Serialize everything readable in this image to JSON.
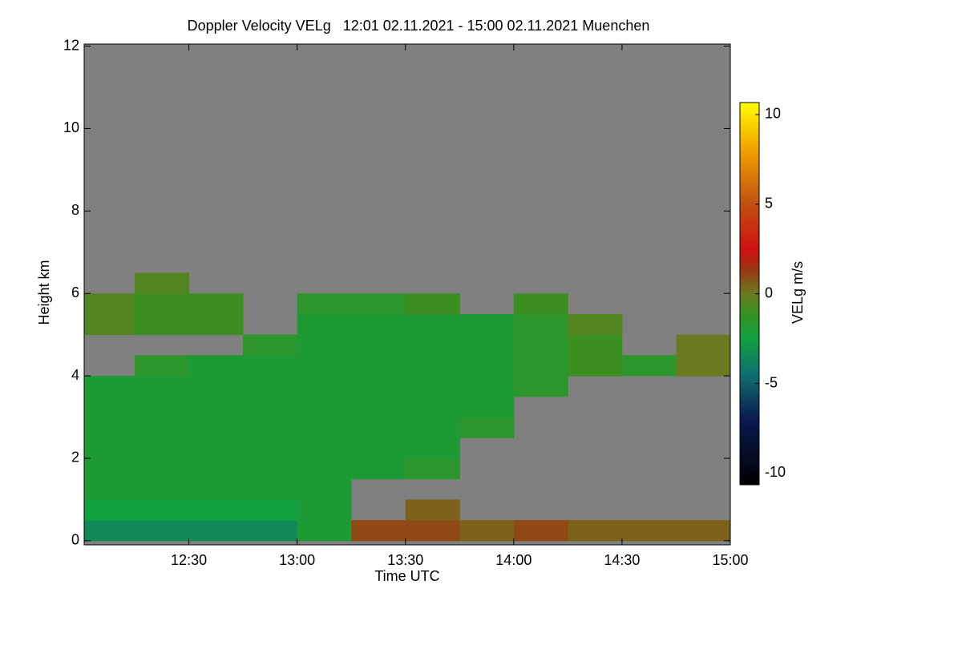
{
  "chart_data": {
    "type": "heatmap",
    "title": "Doppler Velocity VELg   12:01 02.11.2021 - 15:00 02.11.2021 Muenchen",
    "x_label": "Time UTC",
    "y_label": "Height km",
    "colorbar_label": "VELg m/s",
    "xlim": [
      12.0167,
      15.0
    ],
    "xticks": [
      {
        "value": 12.5,
        "label": "12:30"
      },
      {
        "value": 13.0,
        "label": "13:00"
      },
      {
        "value": 13.5,
        "label": "13:30"
      },
      {
        "value": 14.0,
        "label": "14:00"
      },
      {
        "value": 14.5,
        "label": "14:30"
      },
      {
        "value": 15.0,
        "label": "15:00"
      }
    ],
    "ylim": [
      -0.1,
      12.05
    ],
    "yticks": [
      0,
      2,
      4,
      6,
      8,
      10,
      12
    ],
    "background": "#808080",
    "x_bins": [
      12.0167,
      12.25,
      12.5,
      12.75,
      13.0,
      13.25,
      13.5,
      13.75,
      14.0,
      14.25,
      14.5,
      14.75,
      15.0
    ],
    "y_bins": [
      0,
      0.5,
      1,
      1.5,
      2,
      2.5,
      3,
      3.5,
      4,
      4.5,
      5,
      5.5,
      6,
      6.5
    ],
    "z": [
      [
        -3.5,
        -3.5,
        -3.5,
        -3.5,
        -2,
        1,
        1,
        0.5,
        1,
        0.5,
        0.5,
        0.5
      ],
      [
        -2.5,
        -2.5,
        -2.5,
        -2.5,
        -2,
        null,
        0.5,
        null,
        null,
        null,
        null,
        null
      ],
      [
        -2,
        -2,
        -2,
        -2,
        -2,
        null,
        null,
        null,
        null,
        null,
        null,
        null
      ],
      [
        -2,
        -2,
        -2,
        -2,
        -2,
        -2,
        -1.5,
        null,
        null,
        null,
        null,
        null
      ],
      [
        -2,
        -2,
        -2,
        -2,
        -2,
        -2,
        -2,
        null,
        null,
        null,
        null,
        null
      ],
      [
        -2,
        -2,
        -2,
        -2,
        -2,
        -2,
        -2,
        -1.5,
        null,
        null,
        null,
        null
      ],
      [
        -2,
        -2,
        -2,
        -2,
        -2,
        -2,
        -2,
        -2,
        null,
        null,
        null,
        null
      ],
      [
        -2,
        -2,
        -2,
        -2,
        -2,
        -2,
        -2,
        -2,
        -1.5,
        null,
        null,
        null
      ],
      [
        null,
        -1.5,
        -2,
        -2,
        -2,
        -2,
        -2,
        -2,
        -1.5,
        -1,
        -1.5,
        0
      ],
      [
        null,
        null,
        null,
        -1.5,
        -2,
        -2,
        -2,
        -2,
        -1.5,
        -1,
        null,
        0
      ],
      [
        -0.5,
        -1,
        -1,
        null,
        -2,
        -2,
        -2,
        -2,
        -1.5,
        -0.5,
        null,
        null
      ],
      [
        -0.5,
        -1,
        -1,
        null,
        -1.5,
        -1.5,
        -1,
        null,
        -1,
        null,
        null,
        null
      ],
      [
        null,
        -0.5,
        null,
        null,
        null,
        null,
        null,
        null,
        null,
        null,
        null,
        null
      ]
    ],
    "clim": [
      -10.65,
      10.67
    ],
    "cticks": [
      -10,
      -5,
      0,
      5,
      10
    ],
    "colormap": [
      {
        "value": -10.65,
        "color": "#000000"
      },
      {
        "value": -7,
        "color": "#0a1a50"
      },
      {
        "value": -4.5,
        "color": "#0f7070"
      },
      {
        "value": -2.5,
        "color": "#10a040"
      },
      {
        "value": -1,
        "color": "#3a8f20"
      },
      {
        "value": 0,
        "color": "#6a7a20"
      },
      {
        "value": 1.5,
        "color": "#a03010"
      },
      {
        "value": 2.5,
        "color": "#d01010"
      },
      {
        "value": 5,
        "color": "#c05010"
      },
      {
        "value": 8,
        "color": "#f0a000"
      },
      {
        "value": 10.67,
        "color": "#ffff00"
      }
    ]
  }
}
